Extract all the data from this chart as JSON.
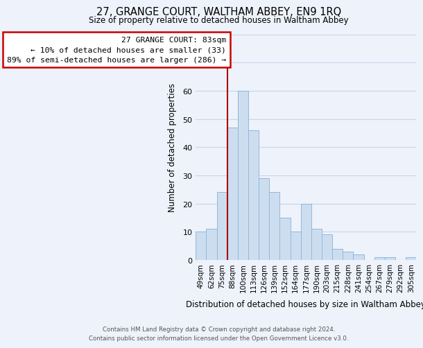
{
  "title": "27, GRANGE COURT, WALTHAM ABBEY, EN9 1RQ",
  "subtitle": "Size of property relative to detached houses in Waltham Abbey",
  "xlabel": "Distribution of detached houses by size in Waltham Abbey",
  "ylabel": "Number of detached properties",
  "bin_labels": [
    "49sqm",
    "62sqm",
    "75sqm",
    "88sqm",
    "100sqm",
    "113sqm",
    "126sqm",
    "139sqm",
    "152sqm",
    "164sqm",
    "177sqm",
    "190sqm",
    "203sqm",
    "215sqm",
    "228sqm",
    "241sqm",
    "254sqm",
    "267sqm",
    "279sqm",
    "292sqm",
    "305sqm"
  ],
  "bar_heights": [
    10,
    11,
    24,
    47,
    60,
    46,
    29,
    24,
    15,
    10,
    20,
    11,
    9,
    4,
    3,
    2,
    0,
    1,
    1,
    0,
    1
  ],
  "bar_color": "#cdddf0",
  "bar_edge_color": "#91b8d9",
  "ylim": [
    0,
    80
  ],
  "yticks": [
    0,
    10,
    20,
    30,
    40,
    50,
    60,
    70,
    80
  ],
  "grid_color": "#c8d4e8",
  "property_line_bin_index": 3,
  "property_line_color": "#aa0000",
  "annotation_line1": "27 GRANGE COURT: 83sqm",
  "annotation_line2": "← 10% of detached houses are smaller (33)",
  "annotation_line3": "89% of semi-detached houses are larger (286) →",
  "annotation_box_color": "#ffffff",
  "annotation_box_edge_color": "#cc0000",
  "footer_line1": "Contains HM Land Registry data © Crown copyright and database right 2024.",
  "footer_line2": "Contains public sector information licensed under the Open Government Licence v3.0.",
  "background_color": "#eef2fa"
}
